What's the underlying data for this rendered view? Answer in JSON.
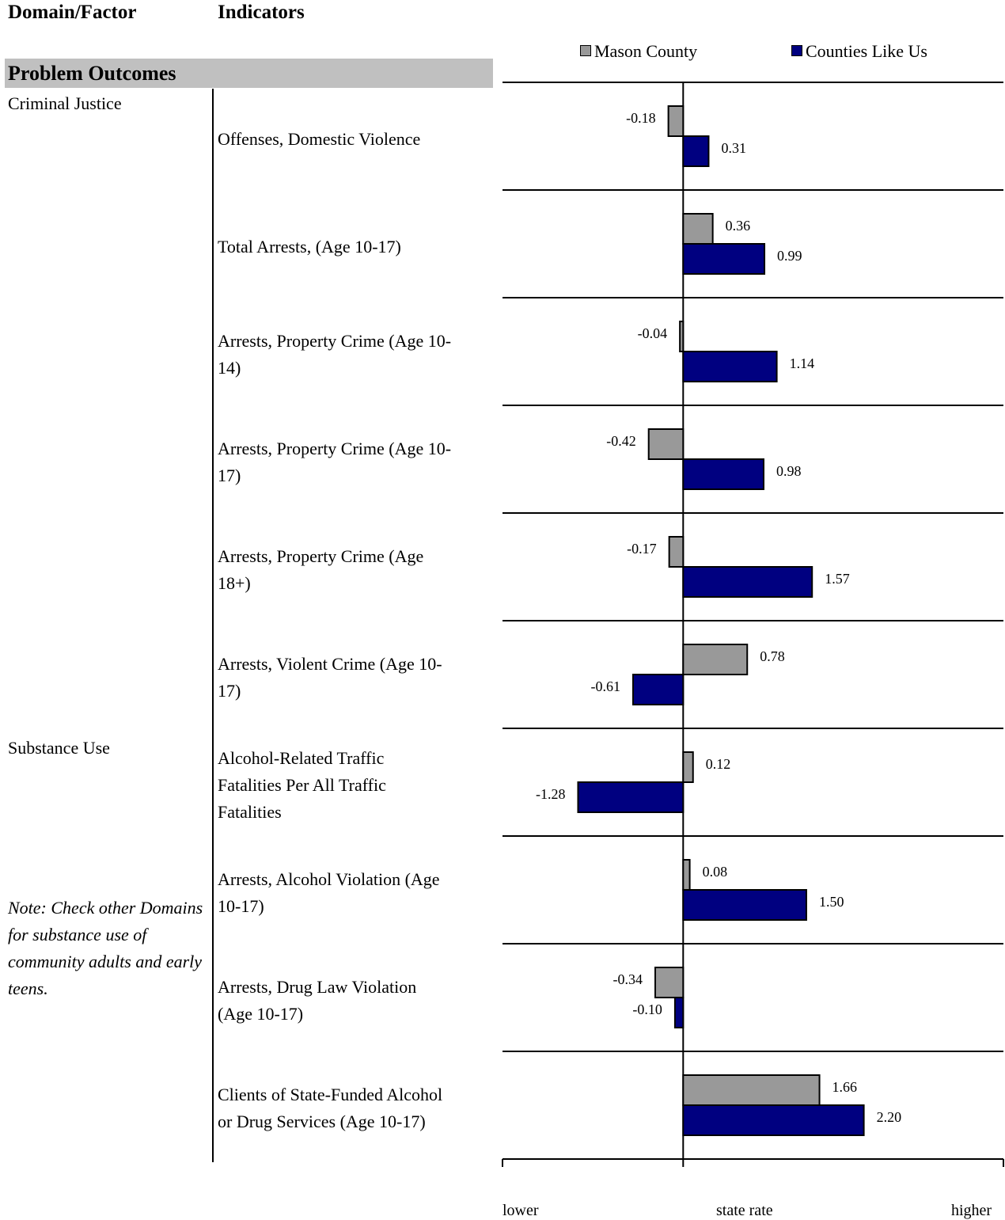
{
  "headers": {
    "domain_factor": "Domain/Factor",
    "indicators": "Indicators"
  },
  "section_title": "Problem Outcomes",
  "domains": [
    {
      "label": "Criminal Justice"
    },
    {
      "label": "Substance Use"
    }
  ],
  "note": "Note: Check other Domains for substance use of community adults and early teens.",
  "legend": {
    "mason": "Mason County",
    "like": "Counties Like Us"
  },
  "colors": {
    "mason": "#999999",
    "like": "#000080",
    "axis": "#000000"
  },
  "axis_labels": {
    "lower": "lower",
    "state": "state rate",
    "higher": "higher"
  },
  "chart_data": {
    "type": "bar",
    "orientation": "horizontal",
    "xlim": [
      -2.2,
      3.9
    ],
    "series": [
      {
        "name": "Mason County",
        "values": [
          -0.18,
          0.36,
          -0.04,
          -0.42,
          -0.17,
          0.78,
          0.12,
          0.08,
          -0.34,
          1.66
        ]
      },
      {
        "name": "Counties Like Us",
        "values": [
          0.31,
          0.99,
          1.14,
          0.98,
          1.57,
          -0.61,
          -1.28,
          1.5,
          -0.1,
          2.2
        ]
      }
    ],
    "value_labels": [
      [
        "-0.18",
        "0.31"
      ],
      [
        "0.36",
        "0.99"
      ],
      [
        "-0.04",
        "1.14"
      ],
      [
        "-0.42",
        "0.98"
      ],
      [
        "-0.17",
        "1.57"
      ],
      [
        "0.78",
        "-0.61"
      ],
      [
        "0.12",
        "-1.28"
      ],
      [
        "0.08",
        "1.50"
      ],
      [
        "-0.34",
        "-0.10"
      ],
      [
        "1.66",
        "2.20"
      ]
    ],
    "categories": [
      "Offenses, Domestic Violence",
      "Total Arrests, (Age 10-17)",
      "Arrests, Property Crime (Age 10-\n14)",
      "Arrests, Property Crime (Age 10-\n17)",
      "Arrests, Property Crime (Age\n18+)",
      "Arrests, Violent Crime (Age 10-\n17)",
      "Alcohol-Related Traffic\nFatalities Per All Traffic\nFatalities",
      "Arrests, Alcohol Violation (Age\n10-17)",
      "Arrests, Drug Law Violation\n(Age 10-17)",
      "Clients of State-Funded Alcohol\nor Drug Services (Age 10-17)"
    ]
  }
}
